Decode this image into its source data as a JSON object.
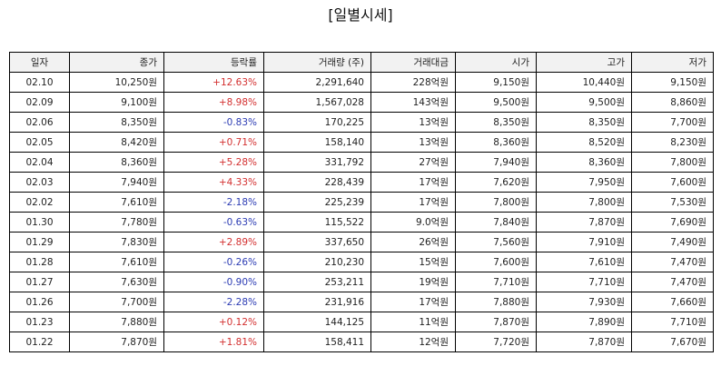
{
  "title": "[일별시세]",
  "columns": [
    "일자",
    "종가",
    "등락률",
    "거래량 (주)",
    "거래대금",
    "시가",
    "고가",
    "저가"
  ],
  "colors": {
    "up": "#d32f2f",
    "down": "#2b3bb3"
  },
  "rows": [
    {
      "date": "02.10",
      "close": "10,250원",
      "change": "+12.63%",
      "direction": "up",
      "volume": "2,291,640",
      "amount": "228억원",
      "open": "9,150원",
      "high": "10,440원",
      "low": "9,150원"
    },
    {
      "date": "02.09",
      "close": "9,100원",
      "change": "+8.98%",
      "direction": "up",
      "volume": "1,567,028",
      "amount": "143억원",
      "open": "9,500원",
      "high": "9,500원",
      "low": "8,860원"
    },
    {
      "date": "02.06",
      "close": "8,350원",
      "change": "-0.83%",
      "direction": "down",
      "volume": "170,225",
      "amount": "13억원",
      "open": "8,350원",
      "high": "8,350원",
      "low": "7,700원"
    },
    {
      "date": "02.05",
      "close": "8,420원",
      "change": "+0.71%",
      "direction": "up",
      "volume": "158,140",
      "amount": "13억원",
      "open": "8,360원",
      "high": "8,520원",
      "low": "8,230원"
    },
    {
      "date": "02.04",
      "close": "8,360원",
      "change": "+5.28%",
      "direction": "up",
      "volume": "331,792",
      "amount": "27억원",
      "open": "7,940원",
      "high": "8,360원",
      "low": "7,800원"
    },
    {
      "date": "02.03",
      "close": "7,940원",
      "change": "+4.33%",
      "direction": "up",
      "volume": "228,439",
      "amount": "17억원",
      "open": "7,620원",
      "high": "7,950원",
      "low": "7,600원"
    },
    {
      "date": "02.02",
      "close": "7,610원",
      "change": "-2.18%",
      "direction": "down",
      "volume": "225,239",
      "amount": "17억원",
      "open": "7,800원",
      "high": "7,800원",
      "low": "7,530원"
    },
    {
      "date": "01.30",
      "close": "7,780원",
      "change": "-0.63%",
      "direction": "down",
      "volume": "115,522",
      "amount": "9.0억원",
      "open": "7,840원",
      "high": "7,870원",
      "low": "7,690원"
    },
    {
      "date": "01.29",
      "close": "7,830원",
      "change": "+2.89%",
      "direction": "up",
      "volume": "337,650",
      "amount": "26억원",
      "open": "7,560원",
      "high": "7,910원",
      "low": "7,490원"
    },
    {
      "date": "01.28",
      "close": "7,610원",
      "change": "-0.26%",
      "direction": "down",
      "volume": "210,230",
      "amount": "15억원",
      "open": "7,600원",
      "high": "7,610원",
      "low": "7,470원"
    },
    {
      "date": "01.27",
      "close": "7,630원",
      "change": "-0.90%",
      "direction": "down",
      "volume": "253,211",
      "amount": "19억원",
      "open": "7,710원",
      "high": "7,710원",
      "low": "7,470원"
    },
    {
      "date": "01.26",
      "close": "7,700원",
      "change": "-2.28%",
      "direction": "down",
      "volume": "231,916",
      "amount": "17억원",
      "open": "7,880원",
      "high": "7,930원",
      "low": "7,660원"
    },
    {
      "date": "01.23",
      "close": "7,880원",
      "change": "+0.12%",
      "direction": "up",
      "volume": "144,125",
      "amount": "11억원",
      "open": "7,870원",
      "high": "7,890원",
      "low": "7,710원"
    },
    {
      "date": "01.22",
      "close": "7,870원",
      "change": "+1.81%",
      "direction": "up",
      "volume": "158,411",
      "amount": "12억원",
      "open": "7,720원",
      "high": "7,870원",
      "low": "7,670원"
    }
  ]
}
